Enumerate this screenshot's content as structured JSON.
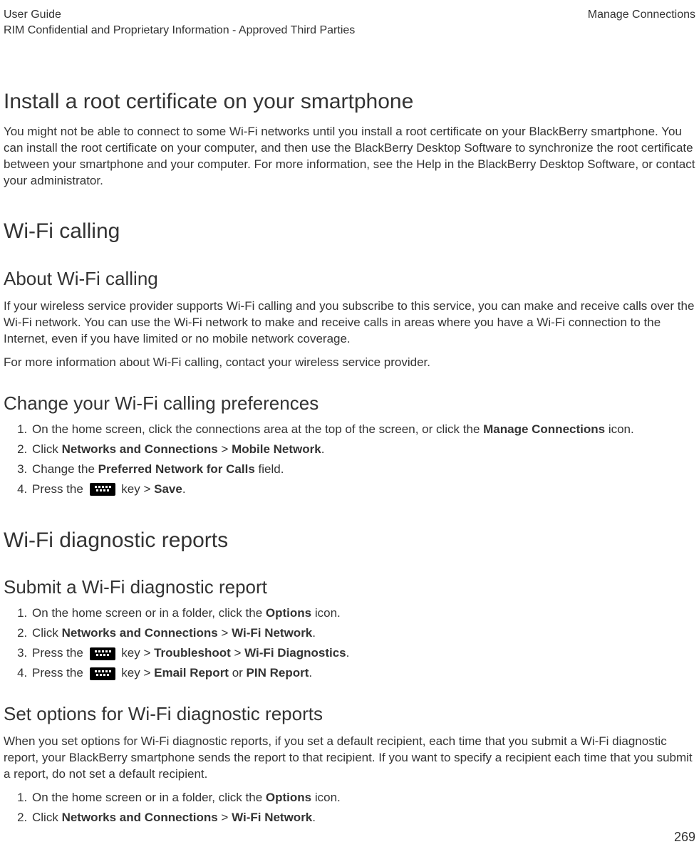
{
  "header": {
    "left_line1": "User Guide",
    "left_line2": "RIM Confidential and Proprietary Information - Approved Third Parties",
    "right": "Manage Connections"
  },
  "h1_install": "Install a root certificate on your smartphone",
  "p_install": "You might not be able to connect to some Wi-Fi networks until you install a root certificate on your BlackBerry smartphone. You can install the root certificate on your computer, and then use the BlackBerry Desktop Software to synchronize the root certificate between your smartphone and your computer. For more information, see the Help in the BlackBerry Desktop Software, or contact your administrator.",
  "h1_wifi_calling": "Wi-Fi calling",
  "h2_about": "About Wi-Fi calling",
  "p_about1": "If your wireless service provider supports Wi-Fi calling and you subscribe to this service, you can make and receive calls over the Wi-Fi network. You can use the Wi-Fi network to make and receive calls in areas where you have a Wi-Fi connection to the Internet, even if you have limited or no mobile network coverage.",
  "p_about2": "For more information about Wi-Fi calling, contact your wireless service provider.",
  "h2_change": "Change your Wi-Fi calling preferences",
  "change_steps": {
    "s1_a": "On the home screen, click the connections area at the top of the screen, or click the ",
    "s1_b": "Manage Connections",
    "s1_c": " icon.",
    "s2_a": "Click ",
    "s2_b": "Networks and Connections",
    "s2_c": " > ",
    "s2_d": "Mobile Network",
    "s2_e": ".",
    "s3_a": "Change the ",
    "s3_b": "Preferred Network for Calls",
    "s3_c": " field.",
    "s4_a": "Press the ",
    "s4_b": " key > ",
    "s4_c": "Save",
    "s4_d": "."
  },
  "h1_diag": "Wi-Fi diagnostic reports",
  "h2_submit": "Submit a Wi-Fi diagnostic report",
  "submit_steps": {
    "s1_a": "On the home screen or in a folder, click the ",
    "s1_b": "Options",
    "s1_c": " icon.",
    "s2_a": "Click ",
    "s2_b": "Networks and Connections",
    "s2_c": " > ",
    "s2_d": "Wi-Fi Network",
    "s2_e": ".",
    "s3_a": "Press the ",
    "s3_b": " key > ",
    "s3_c": "Troubleshoot",
    "s3_d": " > ",
    "s3_e": "Wi-Fi Diagnostics",
    "s3_f": ".",
    "s4_a": "Press the ",
    "s4_b": " key > ",
    "s4_c": "Email Report",
    "s4_d": " or ",
    "s4_e": "PIN Report",
    "s4_f": "."
  },
  "h2_setopt": "Set options for Wi-Fi diagnostic reports",
  "p_setopt": "When you set options for Wi-Fi diagnostic reports, if you set a default recipient, each time that you submit a Wi-Fi diagnostic report, your BlackBerry smartphone sends the report to that recipient. If you want to specify a recipient each time that you submit a report, do not set a default recipient.",
  "setopt_steps": {
    "s1_a": "On the home screen or in a folder, click the ",
    "s1_b": "Options",
    "s1_c": " icon.",
    "s2_a": "Click ",
    "s2_b": "Networks and Connections",
    "s2_c": " > ",
    "s2_d": "Wi-Fi Network",
    "s2_e": "."
  },
  "page_number": "269"
}
